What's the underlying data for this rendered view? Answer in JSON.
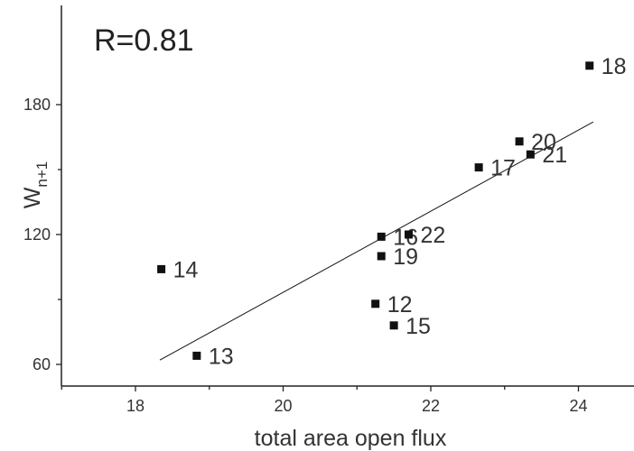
{
  "chart_data": {
    "type": "scatter",
    "annotation": "R=0.81",
    "xlabel": "total area open flux",
    "ylabel_main": "W",
    "ylabel_sub": "n+1",
    "xlim": [
      17.0,
      25.0
    ],
    "ylim": [
      50,
      210
    ],
    "x_ticks": [
      18,
      20,
      22,
      24
    ],
    "x_minor_ticks": [
      17,
      19,
      21,
      23,
      25
    ],
    "y_ticks": [
      60,
      120,
      180
    ],
    "y_minor_ticks": [
      90,
      150
    ],
    "points": [
      {
        "label": "12",
        "x": 21.25,
        "y": 88
      },
      {
        "label": "13",
        "x": 18.83,
        "y": 64
      },
      {
        "label": "14",
        "x": 18.35,
        "y": 104
      },
      {
        "label": "15",
        "x": 21.5,
        "y": 78
      },
      {
        "label": "16",
        "x": 21.33,
        "y": 119
      },
      {
        "label": "17",
        "x": 22.65,
        "y": 151
      },
      {
        "label": "18",
        "x": 24.15,
        "y": 198
      },
      {
        "label": "19",
        "x": 21.33,
        "y": 110
      },
      {
        "label": "20",
        "x": 23.2,
        "y": 163
      },
      {
        "label": "21",
        "x": 23.35,
        "y": 157
      },
      {
        "label": "22",
        "x": 21.7,
        "y": 120
      }
    ],
    "fit_line": {
      "x1": 18.33,
      "y1": 62,
      "x2": 24.2,
      "y2": 172
    }
  }
}
